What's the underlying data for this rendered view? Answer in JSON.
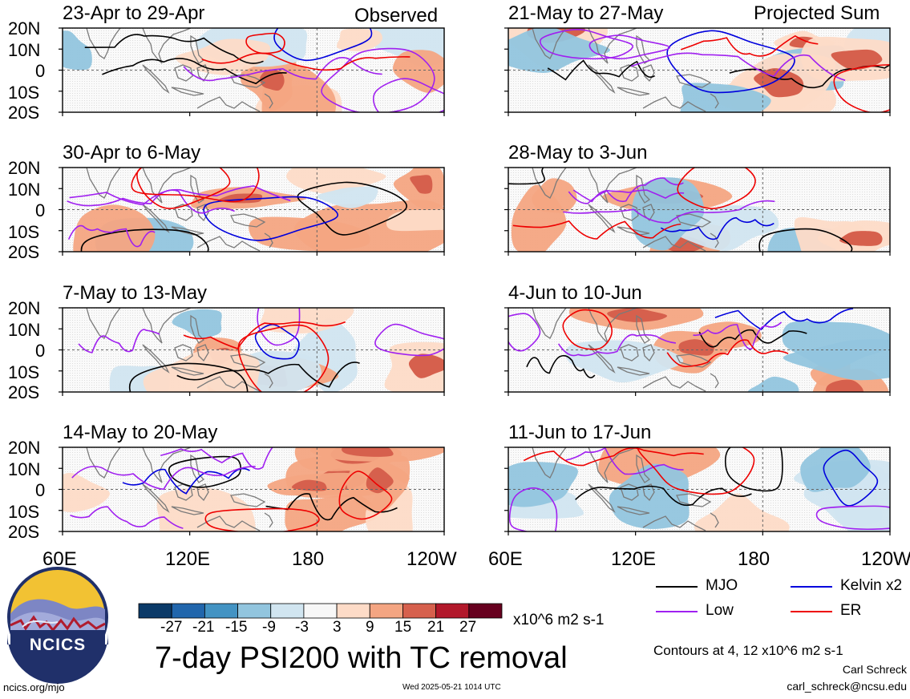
{
  "chart_data": {
    "type": "heatmap",
    "title": "7-day PSI200 with TC removal",
    "units": "x10^6 m2 s-1",
    "column_headers": [
      "Observed",
      "Projected Sum"
    ],
    "lat_ticks": [
      "20N",
      "10N",
      "0",
      "10S",
      "20S"
    ],
    "lon_ticks": [
      "60E",
      "120E",
      "180",
      "120W"
    ],
    "lon_range_deg_east": [
      60,
      240
    ],
    "lat_range": [
      -20,
      20
    ],
    "grid": false,
    "panels": [
      {
        "title": "23-Apr to 29-Apr",
        "column": "Observed",
        "row": 0
      },
      {
        "title": "30-Apr to 6-May",
        "column": "Observed",
        "row": 1
      },
      {
        "title": "7-May to 13-May",
        "column": "Observed",
        "row": 2
      },
      {
        "title": "14-May to 20-May",
        "column": "Observed",
        "row": 3
      },
      {
        "title": "21-May to 27-May",
        "column": "Projected Sum",
        "row": 0
      },
      {
        "title": "28-May to 3-Jun",
        "column": "Projected Sum",
        "row": 1
      },
      {
        "title": "4-Jun to 10-Jun",
        "column": "Projected Sum",
        "row": 2
      },
      {
        "title": "11-Jun to 17-Jun",
        "column": "Projected Sum",
        "row": 3
      }
    ],
    "colorbar": {
      "ticks": [
        "-27",
        "-21",
        "-15",
        "-9",
        "-3",
        "3",
        "9",
        "15",
        "21",
        "27"
      ],
      "colors": [
        "#0b3a68",
        "#2166ac",
        "#4393c3",
        "#92c5de",
        "#d1e5f0",
        "#f7f7f7",
        "#fddbc7",
        "#f4a582",
        "#d6604d",
        "#b2182b",
        "#67001f"
      ]
    },
    "legend": {
      "placement": "bottom-right",
      "entries": [
        {
          "label": "MJO",
          "color": "#000000"
        },
        {
          "label": "Kelvin x2",
          "color": "#0000dd"
        },
        {
          "label": "Low",
          "color": "#a020f0"
        },
        {
          "label": "ER",
          "color": "#ee0000"
        }
      ],
      "contour_note": "Contours at 4, 12 x10^6 m2 s-1"
    }
  },
  "footer": {
    "logo_text": "NCICS",
    "site": "ncics.org/mjo",
    "timestamp": "Wed 2025-05-21 1014 UTC",
    "author": "Carl Schreck",
    "email": "carl_schreck@ncsu.edu"
  }
}
